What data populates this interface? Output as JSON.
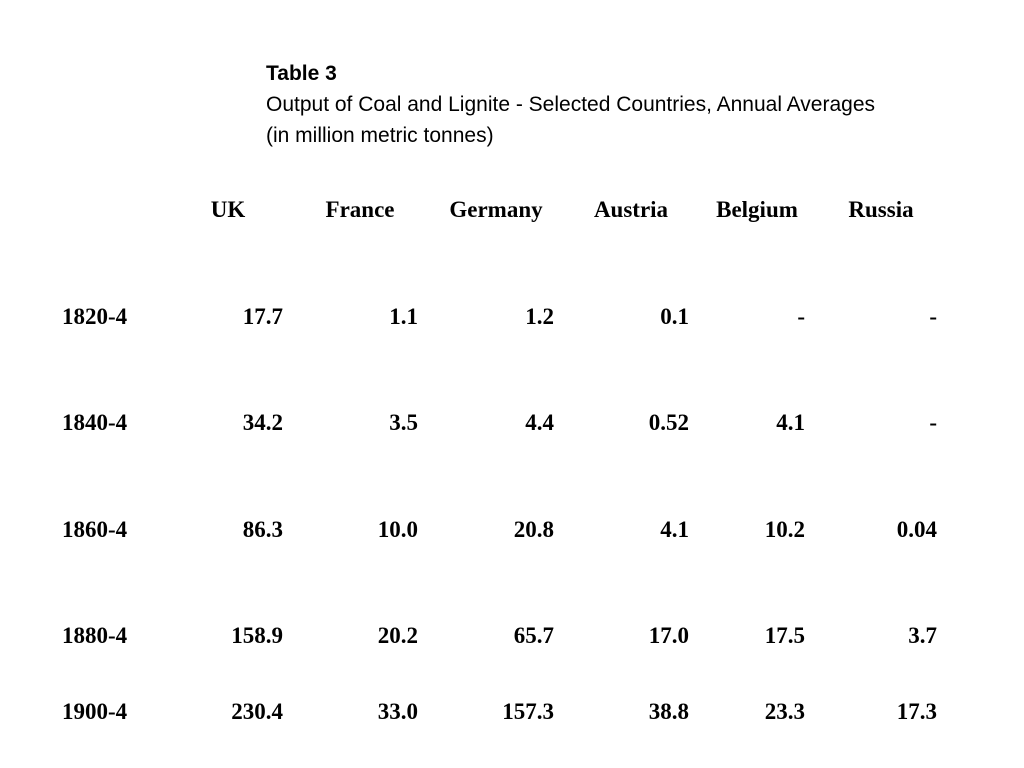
{
  "caption": {
    "table_label": "Table 3",
    "title": "Output of Coal and Lignite - Selected Countries, Annual Averages",
    "unit": "(in million metric tonnes)"
  },
  "table": {
    "columns": [
      "UK",
      "France",
      "Germany",
      "Austria",
      "Belgium",
      "Russia"
    ],
    "rows": [
      {
        "period": "1820-4",
        "values": [
          "17.7",
          "1.1",
          "1.2",
          "0.1",
          "-",
          "-"
        ]
      },
      {
        "period": "1840-4",
        "values": [
          "34.2",
          "3.5",
          "4.4",
          "0.52",
          "4.1",
          "-"
        ]
      },
      {
        "period": "1860-4",
        "values": [
          "86.3",
          "10.0",
          "20.8",
          "4.1",
          "10.2",
          "0.04"
        ]
      },
      {
        "period": "1880-4",
        "values": [
          "158.9",
          "20.2",
          "65.7",
          "17.0",
          "17.5",
          "3.7"
        ]
      },
      {
        "period": "1900-4",
        "values": [
          "230.4",
          "33.0",
          "157.3",
          "38.8",
          "23.3",
          "17.3"
        ]
      }
    ]
  }
}
